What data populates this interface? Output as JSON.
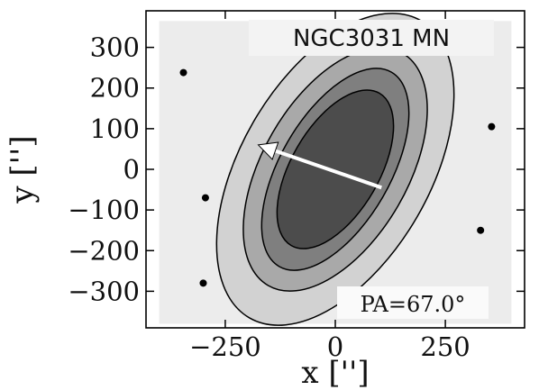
{
  "chart_data": {
    "type": "contour",
    "title": "NGC3031 MN",
    "annotation": "PA=67.0°",
    "position_angle_deg": 67.0,
    "xlabel": "x ['']",
    "ylabel": "y ['']",
    "xlim": [
      -430,
      430
    ],
    "ylim": [
      -390,
      390
    ],
    "xticks": [
      -250,
      0,
      250
    ],
    "xtick_labels": [
      "−250",
      "0",
      "250"
    ],
    "yticks": [
      300,
      200,
      100,
      0,
      -100,
      -200,
      -300
    ],
    "ytick_labels": [
      "300",
      "200",
      "100",
      "0",
      "−100",
      "−200",
      "−300"
    ],
    "grid": false,
    "center": [
      0,
      0
    ],
    "ellipse_axis_angle_deg": 60,
    "contour_levels": [
      {
        "level": 1,
        "semi_major": 390,
        "semi_minor": 215,
        "fill": "#d2d2d2"
      },
      {
        "level": 2,
        "semi_major": 305,
        "semi_minor": 165,
        "fill": "#a9a9a9"
      },
      {
        "level": 3,
        "semi_major": 255,
        "semi_minor": 125,
        "fill": "#7f7f7f"
      },
      {
        "level": 4,
        "semi_major": 200,
        "semi_minor": 100,
        "fill": "#4c4c4c"
      }
    ],
    "arrow": {
      "from": [
        105,
        -45
      ],
      "to": [
        -175,
        60
      ]
    },
    "point_sources": [
      {
        "x": -345,
        "y": 238
      },
      {
        "x": 330,
        "y": -150
      },
      {
        "x": 355,
        "y": 105
      },
      {
        "x": -295,
        "y": -70
      },
      {
        "x": -300,
        "y": -280
      }
    ],
    "colors": {
      "background": "#ececec",
      "contour_line": "#000000",
      "arrow": "#ffffff"
    }
  }
}
